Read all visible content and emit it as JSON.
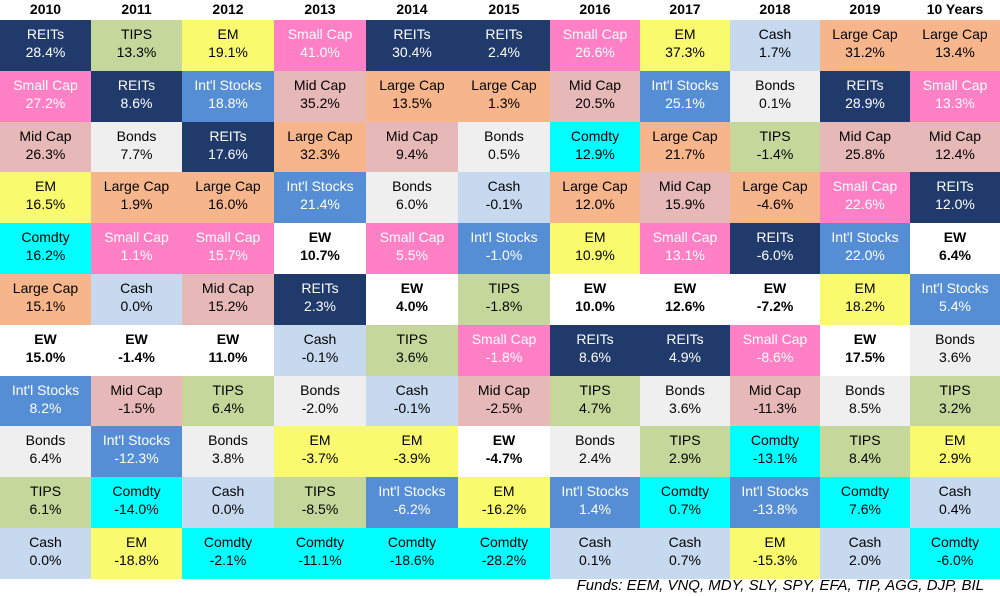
{
  "chart_data": {
    "type": "table",
    "title": "",
    "years": [
      "2010",
      "2011",
      "2012",
      "2013",
      "2014",
      "2015",
      "2016",
      "2017",
      "2018",
      "2019",
      "10 Years"
    ],
    "colors": {
      "REITs": "#1f3a6b",
      "TIPS": "#c5d79a",
      "EM": "#fafa6e",
      "Small Cap": "#ff80c4",
      "Cash": "#c6d9ef",
      "Large Cap": "#f6b58a",
      "Mid Cap": "#e6b8b7",
      "Int'l Stocks": "#558ed5",
      "Bonds": "#efefef",
      "Comdty": "#00ffff",
      "EW": "#ffffff"
    },
    "text_colors": {
      "REITs": "#ffffff",
      "Small Cap": "#ffffff",
      "Int'l Stocks": "#ffffff",
      "default": "#000000"
    },
    "columns": [
      [
        [
          "REITs",
          "28.4%"
        ],
        [
          "Small Cap",
          "27.2%"
        ],
        [
          "Mid Cap",
          "26.3%"
        ],
        [
          "EM",
          "16.5%"
        ],
        [
          "Comdty",
          "16.2%"
        ],
        [
          "Large Cap",
          "15.1%"
        ],
        [
          "EW",
          "15.0%"
        ],
        [
          "Int'l Stocks",
          "8.2%"
        ],
        [
          "Bonds",
          "6.4%"
        ],
        [
          "TIPS",
          "6.1%"
        ],
        [
          "Cash",
          "0.0%"
        ]
      ],
      [
        [
          "TIPS",
          "13.3%"
        ],
        [
          "REITs",
          "8.6%"
        ],
        [
          "Bonds",
          "7.7%"
        ],
        [
          "Large Cap",
          "1.9%"
        ],
        [
          "Small Cap",
          "1.1%"
        ],
        [
          "Cash",
          "0.0%"
        ],
        [
          "EW",
          "-1.4%"
        ],
        [
          "Mid Cap",
          "-1.5%"
        ],
        [
          "Int'l Stocks",
          "-12.3%"
        ],
        [
          "Comdty",
          "-14.0%"
        ],
        [
          "EM",
          "-18.8%"
        ]
      ],
      [
        [
          "EM",
          "19.1%"
        ],
        [
          "Int'l Stocks",
          "18.8%"
        ],
        [
          "REITs",
          "17.6%"
        ],
        [
          "Large Cap",
          "16.0%"
        ],
        [
          "Small Cap",
          "15.7%"
        ],
        [
          "Mid Cap",
          "15.2%"
        ],
        [
          "EW",
          "11.0%"
        ],
        [
          "TIPS",
          "6.4%"
        ],
        [
          "Bonds",
          "3.8%"
        ],
        [
          "Cash",
          "0.0%"
        ],
        [
          "Comdty",
          "-2.1%"
        ]
      ],
      [
        [
          "Small Cap",
          "41.0%"
        ],
        [
          "Mid Cap",
          "35.2%"
        ],
        [
          "Large Cap",
          "32.3%"
        ],
        [
          "Int'l Stocks",
          "21.4%"
        ],
        [
          "EW",
          "10.7%"
        ],
        [
          "REITs",
          "2.3%"
        ],
        [
          "Cash",
          "-0.1%"
        ],
        [
          "Bonds",
          "-2.0%"
        ],
        [
          "EM",
          "-3.7%"
        ],
        [
          "TIPS",
          "-8.5%"
        ],
        [
          "Comdty",
          "-11.1%"
        ]
      ],
      [
        [
          "REITs",
          "30.4%"
        ],
        [
          "Large Cap",
          "13.5%"
        ],
        [
          "Mid Cap",
          "9.4%"
        ],
        [
          "Bonds",
          "6.0%"
        ],
        [
          "Small Cap",
          "5.5%"
        ],
        [
          "EW",
          "4.0%"
        ],
        [
          "TIPS",
          "3.6%"
        ],
        [
          "Cash",
          "-0.1%"
        ],
        [
          "EM",
          "-3.9%"
        ],
        [
          "Int'l Stocks",
          "-6.2%"
        ],
        [
          "Comdty",
          "-18.6%"
        ]
      ],
      [
        [
          "REITs",
          "2.4%"
        ],
        [
          "Large Cap",
          "1.3%"
        ],
        [
          "Bonds",
          "0.5%"
        ],
        [
          "Cash",
          "-0.1%"
        ],
        [
          "Int'l Stocks",
          "-1.0%"
        ],
        [
          "TIPS",
          "-1.8%"
        ],
        [
          "Small Cap",
          "-1.8%"
        ],
        [
          "Mid Cap",
          "-2.5%"
        ],
        [
          "EW",
          "-4.7%"
        ],
        [
          "EM",
          "-16.2%"
        ],
        [
          "Comdty",
          "-28.2%"
        ]
      ],
      [
        [
          "Small Cap",
          "26.6%"
        ],
        [
          "Mid Cap",
          "20.5%"
        ],
        [
          "Comdty",
          "12.9%"
        ],
        [
          "Large Cap",
          "12.0%"
        ],
        [
          "EM",
          "10.9%"
        ],
        [
          "EW",
          "10.0%"
        ],
        [
          "REITs",
          "8.6%"
        ],
        [
          "TIPS",
          "4.7%"
        ],
        [
          "Bonds",
          "2.4%"
        ],
        [
          "Int'l Stocks",
          "1.4%"
        ],
        [
          "Cash",
          "0.1%"
        ]
      ],
      [
        [
          "EM",
          "37.3%"
        ],
        [
          "Int'l Stocks",
          "25.1%"
        ],
        [
          "Large Cap",
          "21.7%"
        ],
        [
          "Mid Cap",
          "15.9%"
        ],
        [
          "Small Cap",
          "13.1%"
        ],
        [
          "EW",
          "12.6%"
        ],
        [
          "REITs",
          "4.9%"
        ],
        [
          "Bonds",
          "3.6%"
        ],
        [
          "TIPS",
          "2.9%"
        ],
        [
          "Comdty",
          "0.7%"
        ],
        [
          "Cash",
          "0.7%"
        ]
      ],
      [
        [
          "Cash",
          "1.7%"
        ],
        [
          "Bonds",
          "0.1%"
        ],
        [
          "TIPS",
          "-1.4%"
        ],
        [
          "Large Cap",
          "-4.6%"
        ],
        [
          "REITs",
          "-6.0%"
        ],
        [
          "EW",
          "-7.2%"
        ],
        [
          "Small Cap",
          "-8.6%"
        ],
        [
          "Mid Cap",
          "-11.3%"
        ],
        [
          "Comdty",
          "-13.1%"
        ],
        [
          "Int'l Stocks",
          "-13.8%"
        ],
        [
          "EM",
          "-15.3%"
        ]
      ],
      [
        [
          "Large Cap",
          "31.2%"
        ],
        [
          "REITs",
          "28.9%"
        ],
        [
          "Mid Cap",
          "25.8%"
        ],
        [
          "Small Cap",
          "22.6%"
        ],
        [
          "Int'l Stocks",
          "22.0%"
        ],
        [
          "EM",
          "18.2%"
        ],
        [
          "EW",
          "17.5%"
        ],
        [
          "Bonds",
          "8.5%"
        ],
        [
          "TIPS",
          "8.4%"
        ],
        [
          "Comdty",
          "7.6%"
        ],
        [
          "Cash",
          "2.0%"
        ]
      ],
      [
        [
          "Large Cap",
          "13.4%"
        ],
        [
          "Small Cap",
          "13.3%"
        ],
        [
          "Mid Cap",
          "12.4%"
        ],
        [
          "REITs",
          "12.0%"
        ],
        [
          "EW",
          "6.4%"
        ],
        [
          "Int'l Stocks",
          "5.4%"
        ],
        [
          "Bonds",
          "3.6%"
        ],
        [
          "TIPS",
          "3.2%"
        ],
        [
          "EM",
          "2.9%"
        ],
        [
          "Cash",
          "0.4%"
        ],
        [
          "Comdty",
          "-6.0%"
        ]
      ]
    ]
  },
  "footer": "Funds: EEM, VNQ, MDY, SLY, SPY, EFA, TIP, AGG, DJP, BIL"
}
